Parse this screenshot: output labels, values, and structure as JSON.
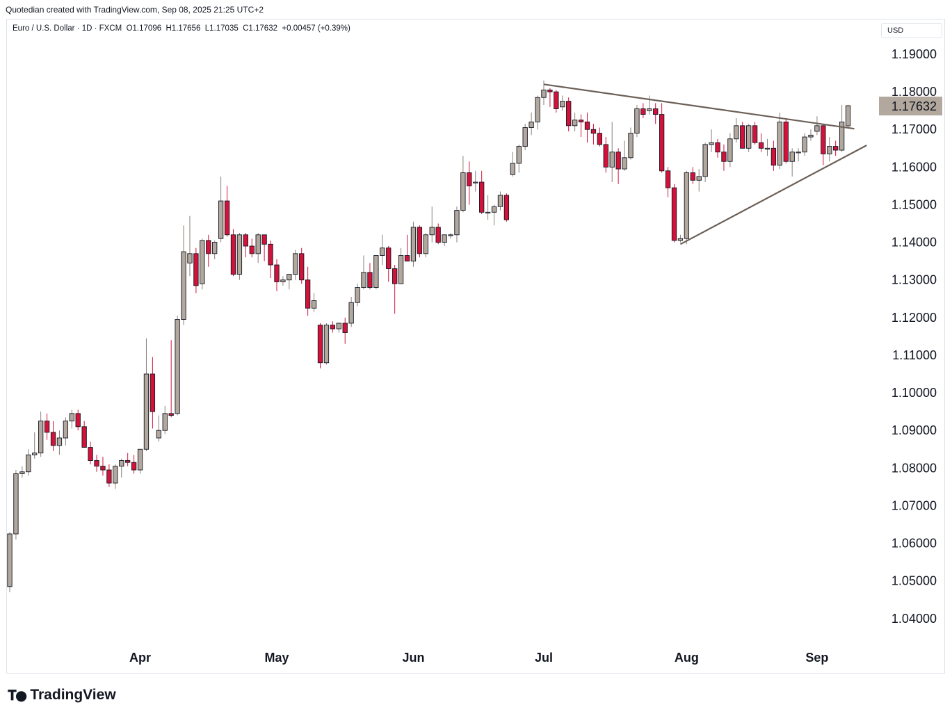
{
  "caption": "Quotedian created with TradingView.com, Sep 08, 2025 21:25 UTC+2",
  "legend": {
    "symbol": "Euro / U.S. Dollar · 1D · FXCM",
    "open": "O1.17096",
    "high": "H1.17656",
    "low": "L1.17035",
    "close": "C1.17632",
    "change": "+0.00457 (+0.39%)"
  },
  "currency_label": "USD",
  "footer_brand": "TradingView",
  "colors": {
    "up": "#b2a89e",
    "down": "#d3123b",
    "outline": "#131722",
    "trendline": "#6b5f57",
    "last_price_bg": "#b2a89e"
  },
  "chart_data": {
    "type": "candlestick",
    "title": "",
    "y_ticks": [
      "1.19000",
      "1.18000",
      "1.17000",
      "1.16000",
      "1.15000",
      "1.14000",
      "1.13000",
      "1.12000",
      "1.11000",
      "1.10000",
      "1.09000",
      "1.08000",
      "1.07000",
      "1.06000",
      "1.05000",
      "1.04000"
    ],
    "x_ticks": [
      {
        "label": "Apr",
        "date": "2025-04-01"
      },
      {
        "label": "May",
        "date": "2025-05-01"
      },
      {
        "label": "Jun",
        "date": "2025-06-02"
      },
      {
        "label": "Jul",
        "date": "2025-07-01"
      },
      {
        "label": "Aug",
        "date": "2025-08-01"
      },
      {
        "label": "Sep",
        "date": "2025-09-01"
      }
    ],
    "last_price": "1.17632",
    "ylim": [
      1.032,
      1.197
    ],
    "grid": false,
    "candles": [
      {
        "date": "2025-03-03",
        "o": 1.0485,
        "h": 1.063,
        "l": 1.047,
        "c": 1.0625
      },
      {
        "date": "2025-03-04",
        "o": 1.0625,
        "h": 1.0795,
        "l": 1.061,
        "c": 1.0785
      },
      {
        "date": "2025-03-05",
        "o": 1.0785,
        "h": 1.0805,
        "l": 1.0775,
        "c": 1.079
      },
      {
        "date": "2025-03-06",
        "o": 1.079,
        "h": 1.085,
        "l": 1.078,
        "c": 1.0835
      },
      {
        "date": "2025-03-07",
        "o": 1.0835,
        "h": 1.0895,
        "l": 1.0825,
        "c": 1.084
      },
      {
        "date": "2025-03-10",
        "o": 1.084,
        "h": 1.095,
        "l": 1.083,
        "c": 1.0925
      },
      {
        "date": "2025-03-11",
        "o": 1.0925,
        "h": 1.0945,
        "l": 1.0875,
        "c": 1.0895
      },
      {
        "date": "2025-03-12",
        "o": 1.0895,
        "h": 1.0925,
        "l": 1.0845,
        "c": 1.086
      },
      {
        "date": "2025-03-13",
        "o": 1.086,
        "h": 1.09,
        "l": 1.0835,
        "c": 1.088
      },
      {
        "date": "2025-03-14",
        "o": 1.088,
        "h": 1.0935,
        "l": 1.086,
        "c": 1.0925
      },
      {
        "date": "2025-03-17",
        "o": 1.0925,
        "h": 1.0955,
        "l": 1.0905,
        "c": 1.0945
      },
      {
        "date": "2025-03-18",
        "o": 1.0945,
        "h": 1.0955,
        "l": 1.09,
        "c": 1.091
      },
      {
        "date": "2025-03-19",
        "o": 1.091,
        "h": 1.0925,
        "l": 1.0855,
        "c": 1.0855
      },
      {
        "date": "2025-03-20",
        "o": 1.0855,
        "h": 1.087,
        "l": 1.081,
        "c": 1.082
      },
      {
        "date": "2025-03-21",
        "o": 1.082,
        "h": 1.0835,
        "l": 1.079,
        "c": 1.0805
      },
      {
        "date": "2025-03-24",
        "o": 1.0805,
        "h": 1.083,
        "l": 1.078,
        "c": 1.0795
      },
      {
        "date": "2025-03-25",
        "o": 1.0795,
        "h": 1.081,
        "l": 1.075,
        "c": 1.076
      },
      {
        "date": "2025-03-26",
        "o": 1.076,
        "h": 1.081,
        "l": 1.0745,
        "c": 1.0805
      },
      {
        "date": "2025-03-27",
        "o": 1.0805,
        "h": 1.0825,
        "l": 1.0775,
        "c": 1.082
      },
      {
        "date": "2025-03-28",
        "o": 1.082,
        "h": 1.084,
        "l": 1.0805,
        "c": 1.0815
      },
      {
        "date": "2025-03-31",
        "o": 1.0815,
        "h": 1.0835,
        "l": 1.0785,
        "c": 1.0795
      },
      {
        "date": "2025-04-01",
        "o": 1.0795,
        "h": 1.085,
        "l": 1.0785,
        "c": 1.085
      },
      {
        "date": "2025-04-02",
        "o": 1.085,
        "h": 1.1145,
        "l": 1.0845,
        "c": 1.105
      },
      {
        "date": "2025-04-03",
        "o": 1.105,
        "h": 1.1095,
        "l": 1.0905,
        "c": 1.095
      },
      {
        "date": "2025-04-04",
        "o": 1.088,
        "h": 1.094,
        "l": 1.087,
        "c": 1.09
      },
      {
        "date": "2025-04-07",
        "o": 1.09,
        "h": 1.0965,
        "l": 1.089,
        "c": 1.0945
      },
      {
        "date": "2025-04-08",
        "o": 1.0945,
        "h": 1.114,
        "l": 1.0935,
        "c": 1.094
      },
      {
        "date": "2025-04-09",
        "o": 1.0945,
        "h": 1.1205,
        "l": 1.094,
        "c": 1.1195
      },
      {
        "date": "2025-04-10",
        "o": 1.1195,
        "h": 1.1445,
        "l": 1.118,
        "c": 1.1375
      },
      {
        "date": "2025-04-11",
        "o": 1.1345,
        "h": 1.147,
        "l": 1.131,
        "c": 1.137
      },
      {
        "date": "2025-04-14",
        "o": 1.137,
        "h": 1.1385,
        "l": 1.1265,
        "c": 1.1285
      },
      {
        "date": "2025-04-15",
        "o": 1.129,
        "h": 1.141,
        "l": 1.1275,
        "c": 1.1405
      },
      {
        "date": "2025-04-16",
        "o": 1.1405,
        "h": 1.142,
        "l": 1.1335,
        "c": 1.137
      },
      {
        "date": "2025-04-17",
        "o": 1.137,
        "h": 1.1405,
        "l": 1.1355,
        "c": 1.14
      },
      {
        "date": "2025-04-18",
        "o": 1.141,
        "h": 1.1575,
        "l": 1.14,
        "c": 1.151
      },
      {
        "date": "2025-04-21",
        "o": 1.151,
        "h": 1.155,
        "l": 1.1415,
        "c": 1.142
      },
      {
        "date": "2025-04-22",
        "o": 1.142,
        "h": 1.1435,
        "l": 1.131,
        "c": 1.1315
      },
      {
        "date": "2025-04-23",
        "o": 1.1315,
        "h": 1.1425,
        "l": 1.13,
        "c": 1.142
      },
      {
        "date": "2025-04-24",
        "o": 1.142,
        "h": 1.1425,
        "l": 1.136,
        "c": 1.139
      },
      {
        "date": "2025-04-25",
        "o": 1.139,
        "h": 1.141,
        "l": 1.136,
        "c": 1.137
      },
      {
        "date": "2025-04-28",
        "o": 1.137,
        "h": 1.1425,
        "l": 1.1345,
        "c": 1.142
      },
      {
        "date": "2025-04-29",
        "o": 1.142,
        "h": 1.142,
        "l": 1.135,
        "c": 1.1395
      },
      {
        "date": "2025-04-30",
        "o": 1.1395,
        "h": 1.1405,
        "l": 1.1305,
        "c": 1.134
      },
      {
        "date": "2025-05-01",
        "o": 1.134,
        "h": 1.1355,
        "l": 1.127,
        "c": 1.1295
      },
      {
        "date": "2025-05-02",
        "o": 1.1295,
        "h": 1.131,
        "l": 1.1285,
        "c": 1.13
      },
      {
        "date": "2025-05-05",
        "o": 1.13,
        "h": 1.1315,
        "l": 1.1275,
        "c": 1.1315
      },
      {
        "date": "2025-05-06",
        "o": 1.1315,
        "h": 1.138,
        "l": 1.13,
        "c": 1.137
      },
      {
        "date": "2025-05-07",
        "o": 1.137,
        "h": 1.1385,
        "l": 1.129,
        "c": 1.13
      },
      {
        "date": "2025-05-08",
        "o": 1.13,
        "h": 1.1335,
        "l": 1.1205,
        "c": 1.1225
      },
      {
        "date": "2025-05-09",
        "o": 1.1225,
        "h": 1.1265,
        "l": 1.1215,
        "c": 1.1245
      },
      {
        "date": "2025-05-12",
        "o": 1.118,
        "h": 1.1185,
        "l": 1.1065,
        "c": 1.108
      },
      {
        "date": "2025-05-13",
        "o": 1.108,
        "h": 1.1185,
        "l": 1.1075,
        "c": 1.118
      },
      {
        "date": "2025-05-14",
        "o": 1.118,
        "h": 1.119,
        "l": 1.116,
        "c": 1.117
      },
      {
        "date": "2025-05-15",
        "o": 1.117,
        "h": 1.118,
        "l": 1.116,
        "c": 1.1185
      },
      {
        "date": "2025-05-16",
        "o": 1.1185,
        "h": 1.12,
        "l": 1.113,
        "c": 1.116
      },
      {
        "date": "2025-05-19",
        "o": 1.1185,
        "h": 1.1255,
        "l": 1.1175,
        "c": 1.124
      },
      {
        "date": "2025-05-20",
        "o": 1.124,
        "h": 1.129,
        "l": 1.123,
        "c": 1.128
      },
      {
        "date": "2025-05-21",
        "o": 1.128,
        "h": 1.1365,
        "l": 1.1275,
        "c": 1.132
      },
      {
        "date": "2025-05-22",
        "o": 1.132,
        "h": 1.1345,
        "l": 1.1275,
        "c": 1.128
      },
      {
        "date": "2025-05-23",
        "o": 1.128,
        "h": 1.1365,
        "l": 1.1275,
        "c": 1.1365
      },
      {
        "date": "2025-05-26",
        "o": 1.1365,
        "h": 1.142,
        "l": 1.134,
        "c": 1.1385
      },
      {
        "date": "2025-05-27",
        "o": 1.1385,
        "h": 1.139,
        "l": 1.1295,
        "c": 1.133
      },
      {
        "date": "2025-05-28",
        "o": 1.133,
        "h": 1.134,
        "l": 1.121,
        "c": 1.129
      },
      {
        "date": "2025-05-29",
        "o": 1.129,
        "h": 1.1385,
        "l": 1.129,
        "c": 1.1365
      },
      {
        "date": "2025-05-30",
        "o": 1.1365,
        "h": 1.142,
        "l": 1.135,
        "c": 1.135
      },
      {
        "date": "2025-06-02",
        "o": 1.135,
        "h": 1.1455,
        "l": 1.1335,
        "c": 1.144
      },
      {
        "date": "2025-06-03",
        "o": 1.144,
        "h": 1.1445,
        "l": 1.136,
        "c": 1.137
      },
      {
        "date": "2025-06-04",
        "o": 1.137,
        "h": 1.1425,
        "l": 1.136,
        "c": 1.142
      },
      {
        "date": "2025-06-05",
        "o": 1.142,
        "h": 1.1495,
        "l": 1.14,
        "c": 1.144
      },
      {
        "date": "2025-06-06",
        "o": 1.144,
        "h": 1.145,
        "l": 1.1395,
        "c": 1.14
      },
      {
        "date": "2025-06-09",
        "o": 1.14,
        "h": 1.142,
        "l": 1.139,
        "c": 1.142
      },
      {
        "date": "2025-06-10",
        "o": 1.142,
        "h": 1.1425,
        "l": 1.141,
        "c": 1.142
      },
      {
        "date": "2025-06-11",
        "o": 1.142,
        "h": 1.1495,
        "l": 1.14,
        "c": 1.1485
      },
      {
        "date": "2025-06-12",
        "o": 1.1485,
        "h": 1.163,
        "l": 1.148,
        "c": 1.1585
      },
      {
        "date": "2025-06-13",
        "o": 1.1585,
        "h": 1.1615,
        "l": 1.15,
        "c": 1.155
      },
      {
        "date": "2025-06-16",
        "o": 1.156,
        "h": 1.159,
        "l": 1.1535,
        "c": 1.156
      },
      {
        "date": "2025-06-17",
        "o": 1.156,
        "h": 1.159,
        "l": 1.1475,
        "c": 1.148
      },
      {
        "date": "2025-06-18",
        "o": 1.148,
        "h": 1.1525,
        "l": 1.146,
        "c": 1.148
      },
      {
        "date": "2025-06-19",
        "o": 1.148,
        "h": 1.15,
        "l": 1.1445,
        "c": 1.1495
      },
      {
        "date": "2025-06-20",
        "o": 1.1495,
        "h": 1.1535,
        "l": 1.1485,
        "c": 1.1525
      },
      {
        "date": "2025-06-23",
        "o": 1.1525,
        "h": 1.153,
        "l": 1.1455,
        "c": 1.146
      },
      {
        "date": "2025-06-24",
        "o": 1.158,
        "h": 1.164,
        "l": 1.1575,
        "c": 1.161
      },
      {
        "date": "2025-06-25",
        "o": 1.161,
        "h": 1.166,
        "l": 1.1585,
        "c": 1.1655
      },
      {
        "date": "2025-06-26",
        "o": 1.1655,
        "h": 1.1715,
        "l": 1.1645,
        "c": 1.1705
      },
      {
        "date": "2025-06-27",
        "o": 1.1705,
        "h": 1.1745,
        "l": 1.1685,
        "c": 1.172
      },
      {
        "date": "2025-06-30",
        "o": 1.172,
        "h": 1.179,
        "l": 1.17,
        "c": 1.1785
      },
      {
        "date": "2025-07-01",
        "o": 1.1785,
        "h": 1.183,
        "l": 1.1765,
        "c": 1.1805
      },
      {
        "date": "2025-07-02",
        "o": 1.1805,
        "h": 1.181,
        "l": 1.176,
        "c": 1.18
      },
      {
        "date": "2025-07-03",
        "o": 1.18,
        "h": 1.1805,
        "l": 1.1745,
        "c": 1.1755
      },
      {
        "date": "2025-07-04",
        "o": 1.176,
        "h": 1.179,
        "l": 1.175,
        "c": 1.1775
      },
      {
        "date": "2025-07-07",
        "o": 1.1775,
        "h": 1.1785,
        "l": 1.1695,
        "c": 1.171
      },
      {
        "date": "2025-07-08",
        "o": 1.171,
        "h": 1.1745,
        "l": 1.1695,
        "c": 1.1725
      },
      {
        "date": "2025-07-09",
        "o": 1.1725,
        "h": 1.174,
        "l": 1.168,
        "c": 1.172
      },
      {
        "date": "2025-07-10",
        "o": 1.172,
        "h": 1.1745,
        "l": 1.1665,
        "c": 1.17
      },
      {
        "date": "2025-07-11",
        "o": 1.17,
        "h": 1.1715,
        "l": 1.166,
        "c": 1.169
      },
      {
        "date": "2025-07-14",
        "o": 1.169,
        "h": 1.1705,
        "l": 1.1655,
        "c": 1.166
      },
      {
        "date": "2025-07-15",
        "o": 1.166,
        "h": 1.168,
        "l": 1.1585,
        "c": 1.16
      },
      {
        "date": "2025-07-16",
        "o": 1.16,
        "h": 1.172,
        "l": 1.156,
        "c": 1.164
      },
      {
        "date": "2025-07-17",
        "o": 1.164,
        "h": 1.165,
        "l": 1.1555,
        "c": 1.1595
      },
      {
        "date": "2025-07-18",
        "o": 1.1595,
        "h": 1.167,
        "l": 1.159,
        "c": 1.1625
      },
      {
        "date": "2025-07-21",
        "o": 1.1625,
        "h": 1.1705,
        "l": 1.162,
        "c": 1.169
      },
      {
        "date": "2025-07-22",
        "o": 1.169,
        "h": 1.1765,
        "l": 1.168,
        "c": 1.1755
      },
      {
        "date": "2025-07-23",
        "o": 1.1755,
        "h": 1.177,
        "l": 1.173,
        "c": 1.174
      },
      {
        "date": "2025-07-24",
        "o": 1.175,
        "h": 1.179,
        "l": 1.174,
        "c": 1.1755
      },
      {
        "date": "2025-07-25",
        "o": 1.1755,
        "h": 1.177,
        "l": 1.1715,
        "c": 1.174
      },
      {
        "date": "2025-07-28",
        "o": 1.174,
        "h": 1.177,
        "l": 1.1585,
        "c": 1.159
      },
      {
        "date": "2025-07-29",
        "o": 1.159,
        "h": 1.16,
        "l": 1.152,
        "c": 1.1545
      },
      {
        "date": "2025-07-30",
        "o": 1.1545,
        "h": 1.1555,
        "l": 1.14,
        "c": 1.1405
      },
      {
        "date": "2025-07-31",
        "o": 1.1405,
        "h": 1.142,
        "l": 1.14,
        "c": 1.141
      },
      {
        "date": "2025-08-01",
        "o": 1.141,
        "h": 1.159,
        "l": 1.1395,
        "c": 1.1585
      },
      {
        "date": "2025-08-04",
        "o": 1.1585,
        "h": 1.16,
        "l": 1.1555,
        "c": 1.1565
      },
      {
        "date": "2025-08-05",
        "o": 1.1565,
        "h": 1.1595,
        "l": 1.1535,
        "c": 1.1575
      },
      {
        "date": "2025-08-06",
        "o": 1.1575,
        "h": 1.1665,
        "l": 1.156,
        "c": 1.166
      },
      {
        "date": "2025-08-07",
        "o": 1.166,
        "h": 1.17,
        "l": 1.164,
        "c": 1.1665
      },
      {
        "date": "2025-08-08",
        "o": 1.1665,
        "h": 1.1675,
        "l": 1.1625,
        "c": 1.164
      },
      {
        "date": "2025-08-11",
        "o": 1.164,
        "h": 1.166,
        "l": 1.159,
        "c": 1.1615
      },
      {
        "date": "2025-08-12",
        "o": 1.1615,
        "h": 1.169,
        "l": 1.16,
        "c": 1.1675
      },
      {
        "date": "2025-08-13",
        "o": 1.1675,
        "h": 1.173,
        "l": 1.1665,
        "c": 1.171
      },
      {
        "date": "2025-08-14",
        "o": 1.171,
        "h": 1.172,
        "l": 1.165,
        "c": 1.165
      },
      {
        "date": "2025-08-15",
        "o": 1.165,
        "h": 1.1715,
        "l": 1.164,
        "c": 1.171
      },
      {
        "date": "2025-08-18",
        "o": 1.171,
        "h": 1.172,
        "l": 1.166,
        "c": 1.1665
      },
      {
        "date": "2025-08-19",
        "o": 1.1665,
        "h": 1.169,
        "l": 1.164,
        "c": 1.165
      },
      {
        "date": "2025-08-20",
        "o": 1.165,
        "h": 1.1675,
        "l": 1.163,
        "c": 1.165
      },
      {
        "date": "2025-08-21",
        "o": 1.165,
        "h": 1.167,
        "l": 1.159,
        "c": 1.1605
      },
      {
        "date": "2025-08-22",
        "o": 1.1605,
        "h": 1.1745,
        "l": 1.1595,
        "c": 1.172
      },
      {
        "date": "2025-08-25",
        "o": 1.172,
        "h": 1.173,
        "l": 1.161,
        "c": 1.1615
      },
      {
        "date": "2025-08-26",
        "o": 1.1615,
        "h": 1.165,
        "l": 1.1575,
        "c": 1.164
      },
      {
        "date": "2025-08-27",
        "o": 1.164,
        "h": 1.165,
        "l": 1.1615,
        "c": 1.164
      },
      {
        "date": "2025-08-28",
        "o": 1.164,
        "h": 1.169,
        "l": 1.163,
        "c": 1.168
      },
      {
        "date": "2025-08-29",
        "o": 1.168,
        "h": 1.17,
        "l": 1.167,
        "c": 1.1685
      },
      {
        "date": "2025-09-01",
        "o": 1.1695,
        "h": 1.1735,
        "l": 1.1685,
        "c": 1.171
      },
      {
        "date": "2025-09-02",
        "o": 1.171,
        "h": 1.1715,
        "l": 1.1605,
        "c": 1.1635
      },
      {
        "date": "2025-09-03",
        "o": 1.1635,
        "h": 1.168,
        "l": 1.1615,
        "c": 1.1655
      },
      {
        "date": "2025-09-04",
        "o": 1.1655,
        "h": 1.167,
        "l": 1.163,
        "c": 1.1645
      },
      {
        "date": "2025-09-05",
        "o": 1.1645,
        "h": 1.1765,
        "l": 1.164,
        "c": 1.172
      },
      {
        "date": "2025-09-08",
        "o": 1.17096,
        "h": 1.17656,
        "l": 1.17035,
        "c": 1.17632
      }
    ],
    "trendlines": [
      {
        "name": "upper",
        "from": {
          "date": "2025-07-01",
          "price": 1.182
        },
        "to": {
          "date": "2025-09-09",
          "price": 1.1702
        }
      },
      {
        "name": "lower",
        "from": {
          "date": "2025-07-31",
          "price": 1.1395
        },
        "to": {
          "date": "2025-09-11",
          "price": 1.1658
        }
      }
    ]
  }
}
